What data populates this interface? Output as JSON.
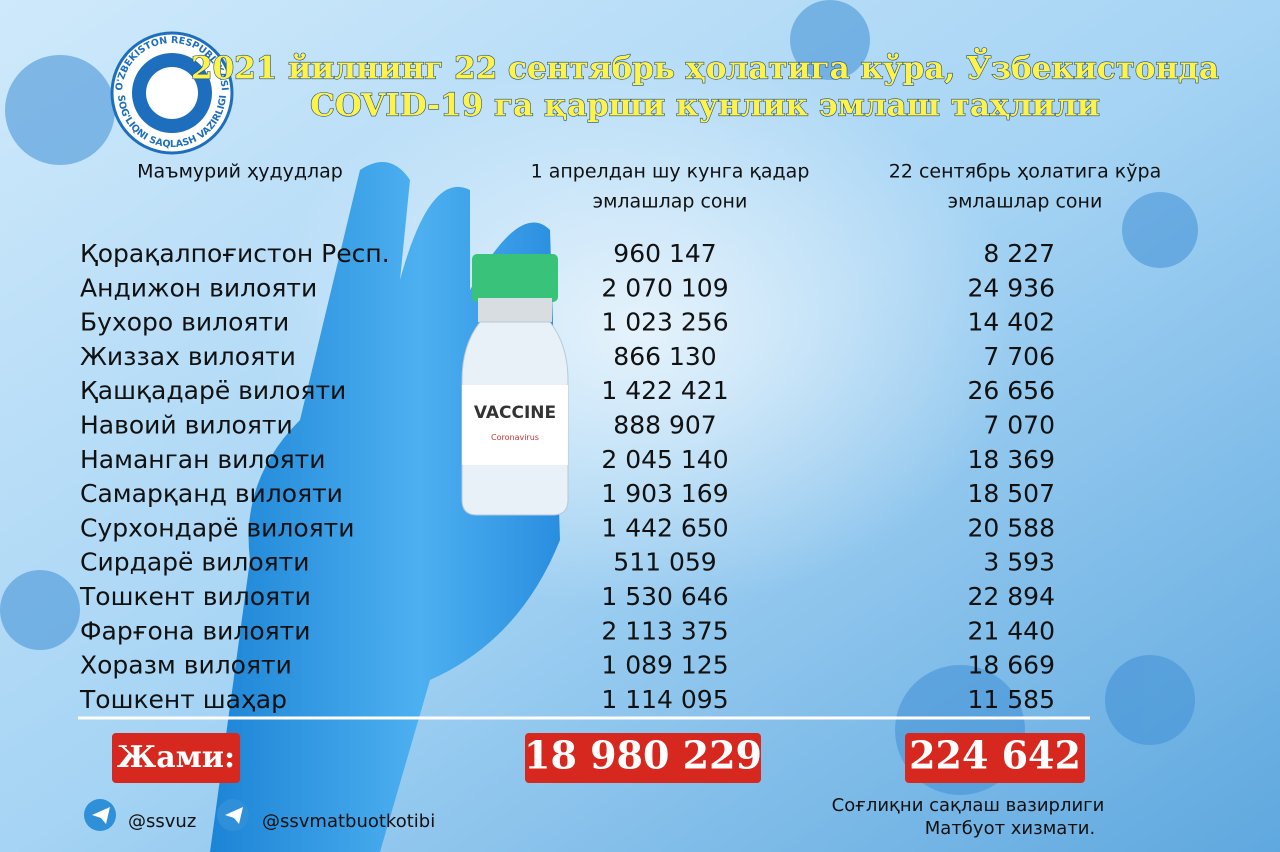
{
  "logo": {
    "top": "O'ZBEKISTON RESPUBLIKASI",
    "bottom": "SOG'LIQNI SAQLASH VAZIRLIGI"
  },
  "header": {
    "title": [
      "2021 йилнинг 22 сентябрь ҳолатига кўра, Ўзбекистонда",
      "COVID-19 га қарши кунлик эмлаш таҳлили"
    ]
  },
  "vial": {
    "label": "VACCINE",
    "sublabel": "Coronavirus"
  },
  "table": {
    "columns": [
      [
        "Маъмурий ҳудудлар"
      ],
      [
        "1 апрелдан шу кунга қадар",
        "эмлашлар сони"
      ],
      [
        "22 сентябрь ҳолатига кўра",
        "эмлашлар сони"
      ]
    ],
    "rows": [
      [
        "Қорақалпоғистон Респ.",
        "960 147",
        "8 227"
      ],
      [
        "Андижон вилояти",
        "2 070 109",
        "24 936"
      ],
      [
        "Бухоро вилояти",
        "1 023 256",
        "14 402"
      ],
      [
        "Жиззах вилояти",
        "866 130",
        "7 706"
      ],
      [
        "Қашқадарё вилояти",
        "1 422 421",
        "26 656"
      ],
      [
        "Навоий вилояти",
        "888 907",
        "7 070"
      ],
      [
        "Наманган вилояти",
        "2 045 140",
        "18 369"
      ],
      [
        "Самарқанд вилояти",
        "1 903 169",
        "18 507"
      ],
      [
        "Сурхондарё вилояти",
        "1 442 650",
        "20 588"
      ],
      [
        "Сирдарё вилояти",
        "511 059",
        "3 593"
      ],
      [
        "Тошкент вилояти",
        "1 530 646",
        "22 894"
      ],
      [
        "Фарғона вилояти",
        "2 113 375",
        "21 440"
      ],
      [
        "Хоразм вилояти",
        "1 089 125",
        "18 669"
      ],
      [
        "Тошкент шаҳар",
        "1 114 095",
        "11 585"
      ]
    ],
    "total": [
      "Жами:",
      "18 980 229",
      "224 642"
    ]
  },
  "footer": {
    "socials": [
      "@ssvuz",
      "@ssvmatbuotkotibi"
    ],
    "credit": [
      "Соғлиқни сақлаш вазирлиги",
      "Матбуот хизмати."
    ]
  }
}
